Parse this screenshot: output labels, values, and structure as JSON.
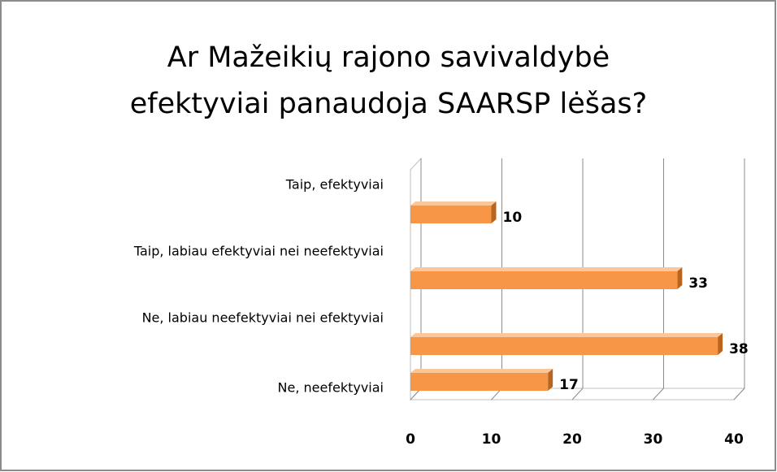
{
  "chart_data": {
    "type": "bar3d_horizontal",
    "title": [
      "Ar Mažeikių rajono savivaldybė",
      "efektyviai panaudoja SAARSP lėšas?"
    ],
    "categories": [
      "Taip, efektyviai",
      "Taip, labiau efektyviai nei neefektyviai",
      "Ne, labiau neefektyviai nei efektyviai",
      "Ne, neefektyviai"
    ],
    "values": [
      10,
      33,
      38,
      17
    ],
    "color": "#f79646",
    "xlim": [
      0,
      40
    ],
    "xticks": [
      0,
      10,
      20,
      30,
      40
    ],
    "grid": true
  }
}
